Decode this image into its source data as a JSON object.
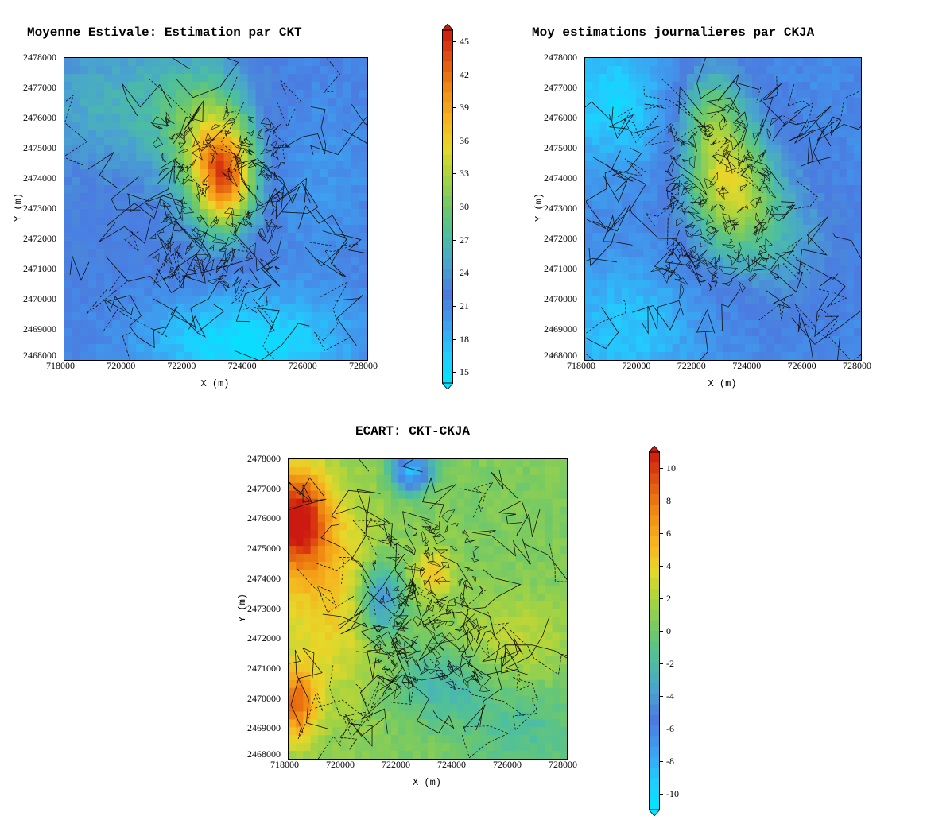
{
  "figure": {
    "panels": [
      {
        "title": "Moyenne Estivale: Estimation par CKT",
        "xlabel": "X (m)",
        "ylabel": "Y (m)",
        "x_ticks": [
          "718000",
          "720000",
          "722000",
          "724000",
          "726000",
          "728000"
        ],
        "y_ticks": [
          "2478000",
          "2477000",
          "2476000",
          "2475000",
          "2474000",
          "2473000",
          "2472000",
          "2471000",
          "2470000",
          "2469000",
          "2468000"
        ],
        "xlim": [
          718000,
          728000
        ],
        "ylim": [
          2468000,
          2478000
        ],
        "field": {
          "base": 22,
          "hotspots": [
            {
              "x": 723300,
              "y": 2474000,
              "amp": 18,
              "sx": 700,
              "sy": 1200
            },
            {
              "x": 722600,
              "y": 2475500,
              "amp": 8,
              "sx": 1000,
              "sy": 1500
            },
            {
              "x": 720000,
              "y": 2476500,
              "amp": 4,
              "sx": 2000,
              "sy": 1500
            }
          ],
          "coolspots": [
            {
              "x": 724000,
              "y": 2468500,
              "amp": -7,
              "sx": 2500,
              "sy": 1200
            },
            {
              "x": 726500,
              "y": 2474000,
              "amp": -2,
              "sx": 1500,
              "sy": 2500
            }
          ]
        }
      },
      {
        "title": "Moy estimations journalieres par CKJA",
        "xlabel": "X (m)",
        "ylabel": "Y (m)",
        "x_ticks": [
          "718000",
          "720000",
          "722000",
          "724000",
          "726000",
          "728000"
        ],
        "y_ticks": [
          "2478000",
          "2477000",
          "2476000",
          "2475000",
          "2474000",
          "2473000",
          "2472000",
          "2471000",
          "2470000",
          "2469000",
          "2468000"
        ],
        "xlim": [
          718000,
          728000
        ],
        "ylim": [
          2468000,
          2478000
        ],
        "field": {
          "base": 21,
          "hotspots": [
            {
              "x": 723300,
              "y": 2473700,
              "amp": 12,
              "sx": 1100,
              "sy": 1400
            },
            {
              "x": 722600,
              "y": 2476000,
              "amp": 8,
              "sx": 900,
              "sy": 1300
            },
            {
              "x": 725000,
              "y": 2472000,
              "amp": 4,
              "sx": 1500,
              "sy": 1500
            }
          ],
          "coolspots": [
            {
              "x": 719000,
              "y": 2476500,
              "amp": -5,
              "sx": 1500,
              "sy": 1500
            },
            {
              "x": 719500,
              "y": 2469000,
              "amp": -4,
              "sx": 1800,
              "sy": 1500
            }
          ]
        }
      },
      {
        "title": "ECART: CKT-CKJA",
        "xlabel": "X (m)",
        "ylabel": "Y (m)",
        "x_ticks": [
          "718000",
          "720000",
          "722000",
          "724000",
          "726000",
          "728000"
        ],
        "y_ticks": [
          "2478000",
          "2477000",
          "2476000",
          "2475000",
          "2474000",
          "2473000",
          "2472000",
          "2471000",
          "2470000",
          "2469000",
          "2468000"
        ],
        "xlim": [
          718000,
          728000
        ],
        "ylim": [
          2468000,
          2478000
        ],
        "field": {
          "base": 0.5,
          "hotspots": [
            {
              "x": 718300,
              "y": 2476000,
              "amp": 10,
              "sx": 800,
              "sy": 1200
            },
            {
              "x": 718300,
              "y": 2469800,
              "amp": 7,
              "sx": 500,
              "sy": 900
            },
            {
              "x": 719500,
              "y": 2473500,
              "amp": 4,
              "sx": 1400,
              "sy": 2500
            },
            {
              "x": 723200,
              "y": 2474200,
              "amp": 4,
              "sx": 500,
              "sy": 600
            },
            {
              "x": 726000,
              "y": 2472000,
              "amp": 2,
              "sx": 1500,
              "sy": 1000
            }
          ],
          "coolspots": [
            {
              "x": 722400,
              "y": 2477600,
              "amp": -9,
              "sx": 500,
              "sy": 500
            },
            {
              "x": 721300,
              "y": 2473300,
              "amp": -6,
              "sx": 600,
              "sy": 900
            },
            {
              "x": 723500,
              "y": 2470500,
              "amp": -3,
              "sx": 1200,
              "sy": 900
            },
            {
              "x": 726500,
              "y": 2469000,
              "amp": -2,
              "sx": 1500,
              "sy": 1000
            }
          ]
        }
      }
    ],
    "colorbars": [
      {
        "min": 14,
        "max": 46,
        "ticks": [
          "45",
          "42",
          "39",
          "36",
          "33",
          "30",
          "27",
          "24",
          "21",
          "18",
          "15"
        ],
        "tick_values": [
          45,
          42,
          39,
          36,
          33,
          30,
          27,
          24,
          21,
          18,
          15
        ]
      },
      {
        "min": -11,
        "max": 11,
        "ticks": [
          "10",
          "8",
          "6",
          "4",
          "2",
          "0",
          "-2",
          "-4",
          "-6",
          "-8",
          "-10"
        ],
        "tick_values": [
          10,
          8,
          6,
          4,
          2,
          0,
          -2,
          -4,
          -6,
          -8,
          -10
        ]
      }
    ],
    "colormap": [
      "#00e5ff",
      "#22ccff",
      "#3da0f0",
      "#4b7be0",
      "#49a3d0",
      "#4cbfa0",
      "#6fc86a",
      "#a7d43f",
      "#e6d82a",
      "#f7b21e",
      "#f08a12",
      "#e25410",
      "#cc1a10"
    ]
  }
}
